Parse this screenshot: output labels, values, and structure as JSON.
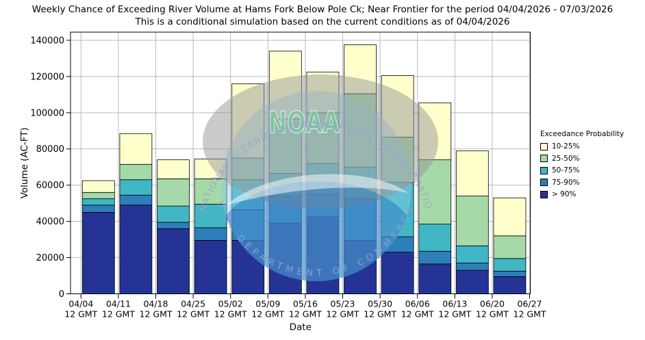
{
  "figure": {
    "title": "Weekly Chance of Exceeding River Volume at Hams Fork Below Pole Ck; Near Frontier for the period 04/04/2026 - 07/03/2026",
    "subtitle": "This is a conditional simulation based on the current conditions as of 04/04/2026"
  },
  "chart_data": {
    "type": "bar",
    "stacked": true,
    "title": "Weekly Chance of Exceeding River Volume at Hams Fork Below Pole Ck; Near Frontier for the period 04/04/2026 - 07/03/2026",
    "subtitle": "This is a conditional simulation based on the current conditions as of 04/04/2026",
    "xlabel": "Date",
    "ylabel": "Volume (AC-FT)",
    "ylim": [
      0,
      144500
    ],
    "yticks": [
      0,
      20000,
      40000,
      60000,
      80000,
      100000,
      120000,
      140000
    ],
    "grid": true,
    "legend_position": "right",
    "x_tick_labels": [
      {
        "date": "04/04",
        "time": "12 GMT"
      },
      {
        "date": "04/11",
        "time": "12 GMT"
      },
      {
        "date": "04/18",
        "time": "12 GMT"
      },
      {
        "date": "04/25",
        "time": "12 GMT"
      },
      {
        "date": "05/02",
        "time": "12 GMT"
      },
      {
        "date": "05/09",
        "time": "12 GMT"
      },
      {
        "date": "05/16",
        "time": "12 GMT"
      },
      {
        "date": "05/23",
        "time": "12 GMT"
      },
      {
        "date": "05/30",
        "time": "12 GMT"
      },
      {
        "date": "06/06",
        "time": "12 GMT"
      },
      {
        "date": "06/13",
        "time": "12 GMT"
      },
      {
        "date": "06/20",
        "time": "12 GMT"
      },
      {
        "date": "06/27",
        "time": "12 GMT"
      }
    ],
    "categories": [
      "04/04",
      "04/11",
      "04/18",
      "04/25",
      "05/02",
      "05/09",
      "05/16",
      "05/23",
      "05/30",
      "06/06",
      "06/13",
      "06/20"
    ],
    "series": [
      {
        "name": "> 90%",
        "color": "#253494",
        "values": [
          45000,
          49000,
          36000,
          29500,
          29500,
          39000,
          42500,
          29500,
          23000,
          16500,
          13000,
          9500
        ]
      },
      {
        "name": "75-90%",
        "color": "#2c7fb8",
        "values": [
          4000,
          5500,
          3500,
          7000,
          17000,
          15000,
          12500,
          23000,
          8500,
          7000,
          4000,
          3000
        ]
      },
      {
        "name": "50-75%",
        "color": "#41b6c4",
        "values": [
          3500,
          8500,
          9000,
          13000,
          16500,
          12500,
          17000,
          17500,
          30000,
          15000,
          9500,
          7000
        ]
      },
      {
        "name": "25-50%",
        "color": "#a5d9a8",
        "values": [
          3500,
          8500,
          15000,
          14000,
          12000,
          30000,
          28000,
          40500,
          25000,
          35500,
          27500,
          12500
        ]
      },
      {
        "name": "10-25%",
        "color": "#ffffcc",
        "values": [
          6500,
          17000,
          10500,
          11000,
          41000,
          37500,
          22500,
          27000,
          34000,
          31500,
          25000,
          21000
        ]
      }
    ],
    "totals": [
      62500,
      88500,
      74000,
      74500,
      116000,
      134000,
      122500,
      137500,
      120500,
      105500,
      79000,
      53000
    ]
  },
  "legend": {
    "title": "Exceedance Probability",
    "entries": [
      {
        "label": "10-25%",
        "color": "#ffffcc"
      },
      {
        "label": "25-50%",
        "color": "#a5d9a8"
      },
      {
        "label": "50-75%",
        "color": "#41b6c4"
      },
      {
        "label": "75-90%",
        "color": "#2c7fb8"
      },
      {
        "label": "> 90%",
        "color": "#253494"
      }
    ]
  },
  "watermark": {
    "center_text": "NOAA",
    "arc_top": "NATIONAL OCEANIC AND ATMOSPHERIC ADMINISTRATION",
    "arc_bottom": "U.S. DEPARTMENT OF COMMERCE"
  }
}
